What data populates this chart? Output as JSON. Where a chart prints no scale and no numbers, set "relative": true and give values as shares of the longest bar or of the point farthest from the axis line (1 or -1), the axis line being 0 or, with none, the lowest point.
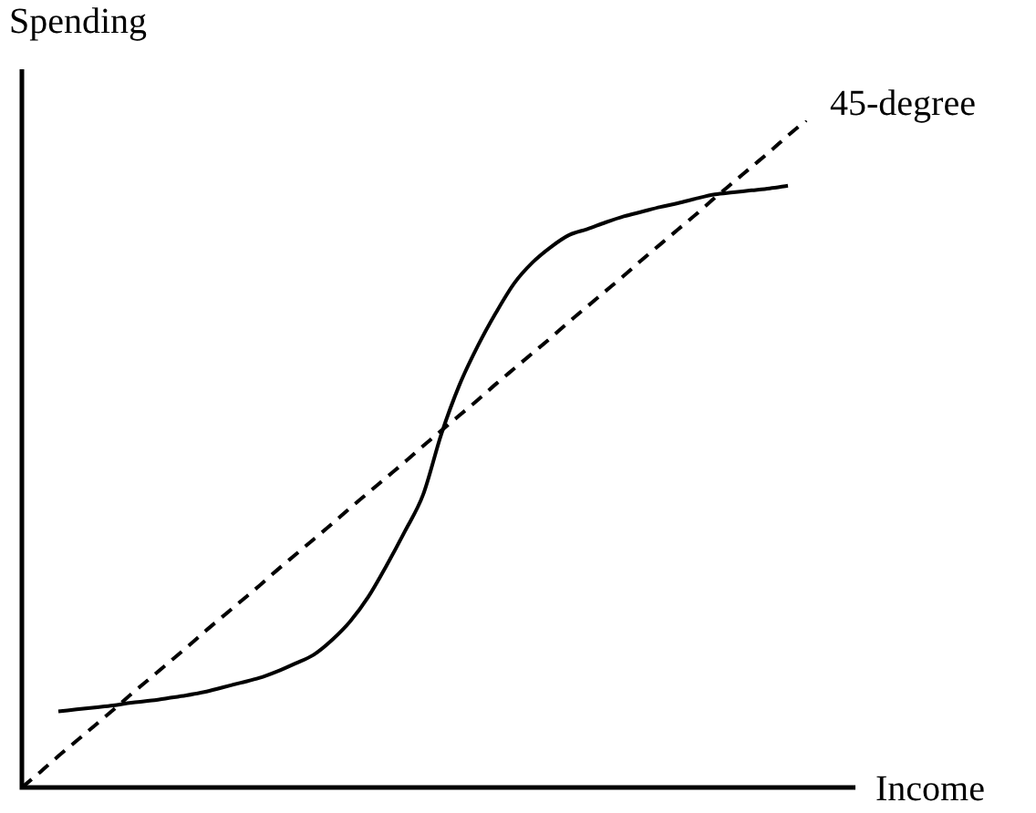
{
  "chart_data": {
    "type": "line",
    "relative": true,
    "xlabel": "Income",
    "ylabel": "Spending",
    "legend": false,
    "marker": "none",
    "categories": [
      null,
      null,
      null,
      null,
      null,
      null,
      null,
      null,
      null,
      null,
      null,
      null,
      null,
      null,
      null,
      null,
      null,
      null,
      null,
      null,
      null,
      null,
      null,
      null,
      null,
      null,
      null,
      null,
      null,
      null,
      null,
      null,
      null,
      null,
      null,
      null,
      null,
      null,
      null,
      null,
      null,
      null,
      null,
      null
    ],
    "series": [
      {
        "color": "#000000",
        "line_style": "solid",
        "values": [
          null,
          null,
          0.114,
          0.117,
          0.12,
          0.123,
          0.127,
          0.13,
          0.134,
          0.138,
          0.143,
          0.15,
          0.157,
          0.164,
          0.174,
          0.186,
          0.199,
          0.221,
          0.249,
          0.286,
          0.333,
          0.384,
          0.439,
          0.53,
          0.604,
          0.662,
          0.712,
          0.756,
          0.787,
          0.81,
          0.828,
          0.837,
          0.847,
          0.856,
          0.863,
          0.87,
          0.876,
          0.883,
          0.889,
          0.892,
          0.895,
          0.898,
          0.902,
          null
        ]
      },
      {
        "name": "45-degree",
        "color": "#000000",
        "line_style": "dashed",
        "values": [
          0,
          0.023,
          0.047,
          0.07,
          0.093,
          0.116,
          0.14,
          0.163,
          0.186,
          0.209,
          0.233,
          0.256,
          0.279,
          0.302,
          0.326,
          0.349,
          0.372,
          0.395,
          0.419,
          0.442,
          0.465,
          0.488,
          0.512,
          0.535,
          0.558,
          0.581,
          0.605,
          0.628,
          0.651,
          0.674,
          0.698,
          0.721,
          0.744,
          0.767,
          0.791,
          0.814,
          0.837,
          0.86,
          0.884,
          0.907,
          0.93,
          0.953,
          0.977,
          1
        ]
      }
    ]
  }
}
